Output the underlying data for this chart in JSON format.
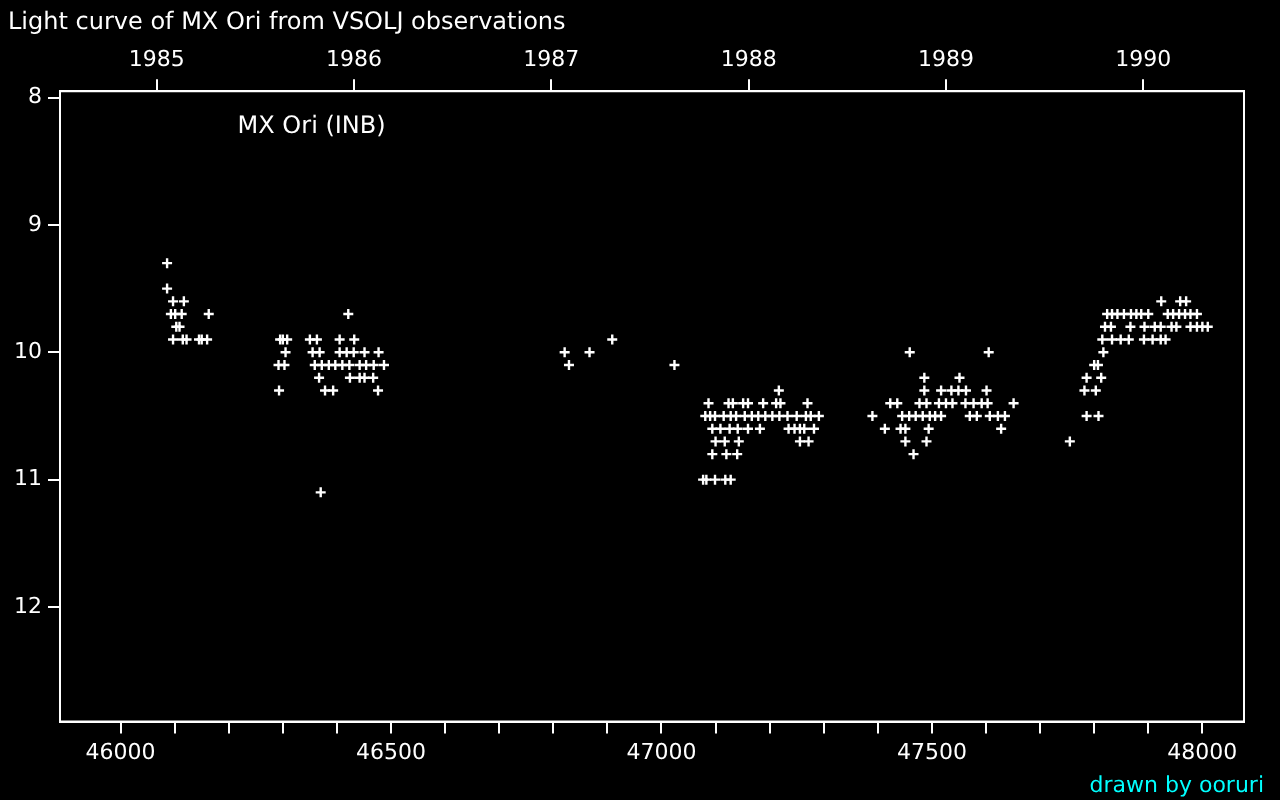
{
  "chart_data": {
    "type": "scatter",
    "title": "Light curve of MX Ori from VSOLJ observations",
    "annotations": [
      "MX Ori (INB)",
      "drawn by ooruri"
    ],
    "xlim": [
      45888,
      48077
    ],
    "xticks": [
      46000,
      {
        "value": 46100,
        "label": null
      },
      {
        "value": 46200,
        "label": null
      },
      {
        "value": 46300,
        "label": null
      },
      {
        "value": 46400,
        "label": null
      },
      46500,
      {
        "value": 46600,
        "label": null
      },
      {
        "value": 46700,
        "label": null
      },
      {
        "value": 46800,
        "label": null
      },
      {
        "value": 46900,
        "label": null
      },
      47000,
      {
        "value": 47100,
        "label": null
      },
      {
        "value": 47200,
        "label": null
      },
      {
        "value": 47300,
        "label": null
      },
      {
        "value": 47400,
        "label": null
      },
      47500,
      {
        "value": 47600,
        "label": null
      },
      {
        "value": 47700,
        "label": null
      },
      {
        "value": 47800,
        "label": null
      },
      {
        "value": 47900,
        "label": null
      },
      48000
    ],
    "x2lim": [
      1984.51,
      1990.51
    ],
    "x2ticks": [
      1985,
      1986,
      1987,
      1988,
      1989,
      1990
    ],
    "ylim": [
      12.9,
      7.95
    ],
    "yticks": [
      8,
      9,
      10,
      11,
      12
    ],
    "grid": false,
    "legend": false,
    "marker": "cross",
    "series": [
      {
        "color": "#ffffff",
        "x": [
          46086,
          46086,
          46097,
          46117,
          46093,
          46101,
          46113,
          46163,
          46103,
          46109,
          46097,
          46115,
          46122,
          46145,
          46150,
          46160,
          46421,
          46295,
          46300,
          46308,
          46350,
          46363,
          46405,
          46432,
          46305,
          46355,
          46368,
          46405,
          46418,
          46431,
          46451,
          46477,
          46292,
          46303,
          46359,
          46372,
          46385,
          46397,
          46410,
          46423,
          46442,
          46454,
          46468,
          46487,
          46367,
          46424,
          46442,
          46451,
          46467,
          46293,
          46378,
          46393,
          46476,
          46370,
          46821,
          46829,
          46867,
          46909,
          47024,
          47217,
          47087,
          47124,
          47132,
          47151,
          47160,
          47188,
          47212,
          47220,
          47270,
          47081,
          47090,
          47099,
          47115,
          47128,
          47138,
          47154,
          47167,
          47179,
          47192,
          47205,
          47218,
          47233,
          47250,
          47267,
          47276,
          47291,
          47094,
          47109,
          47126,
          47141,
          47160,
          47182,
          47235,
          47246,
          47256,
          47264,
          47282,
          47100,
          47117,
          47143,
          47256,
          47272,
          47094,
          47120,
          47140,
          47077,
          47083,
          47099,
          47118,
          47128,
          47459,
          47605,
          47486,
          47551,
          47486,
          47517,
          47536,
          47549,
          47563,
          47601,
          47423,
          47436,
          47477,
          47490,
          47513,
          47526,
          47538,
          47562,
          47577,
          47592,
          47603,
          47651,
          47390,
          47445,
          47458,
          47470,
          47483,
          47496,
          47506,
          47517,
          47570,
          47583,
          47607,
          47622,
          47635,
          47413,
          47442,
          47451,
          47494,
          47628,
          47451,
          47490,
          47466,
          47924,
          47959,
          47970,
          47824,
          47833,
          47843,
          47855,
          47868,
          47878,
          47887,
          47900,
          47936,
          47946,
          47957,
          47968,
          47978,
          47990,
          47820,
          47831,
          47867,
          47893,
          47912,
          47923,
          47943,
          47952,
          47978,
          47990,
          48000,
          48010,
          47815,
          47833,
          47849,
          47864,
          47892,
          47908,
          47923,
          47932,
          47817,
          47800,
          47807,
          47786,
          47813,
          47782,
          47803,
          47786,
          47808,
          47755
        ],
        "values": [
          9.3,
          9.5,
          9.6,
          9.6,
          9.7,
          9.7,
          9.7,
          9.7,
          9.8,
          9.8,
          9.9,
          9.9,
          9.9,
          9.9,
          9.9,
          9.9,
          9.7,
          9.9,
          9.9,
          9.9,
          9.9,
          9.9,
          9.9,
          9.9,
          10.0,
          10.0,
          10.0,
          10.0,
          10.0,
          10.0,
          10.0,
          10.0,
          10.1,
          10.1,
          10.1,
          10.1,
          10.1,
          10.1,
          10.1,
          10.1,
          10.1,
          10.1,
          10.1,
          10.1,
          10.2,
          10.2,
          10.2,
          10.2,
          10.2,
          10.3,
          10.3,
          10.3,
          10.3,
          11.1,
          10.0,
          10.1,
          10.0,
          9.9,
          10.1,
          10.3,
          10.4,
          10.4,
          10.4,
          10.4,
          10.4,
          10.4,
          10.4,
          10.4,
          10.4,
          10.5,
          10.5,
          10.5,
          10.5,
          10.5,
          10.5,
          10.5,
          10.5,
          10.5,
          10.5,
          10.5,
          10.5,
          10.5,
          10.5,
          10.5,
          10.5,
          10.5,
          10.6,
          10.6,
          10.6,
          10.6,
          10.6,
          10.6,
          10.6,
          10.6,
          10.6,
          10.6,
          10.6,
          10.7,
          10.7,
          10.7,
          10.7,
          10.7,
          10.8,
          10.8,
          10.8,
          11.0,
          11.0,
          11.0,
          11.0,
          11.0,
          10.0,
          10.0,
          10.2,
          10.2,
          10.3,
          10.3,
          10.3,
          10.3,
          10.3,
          10.3,
          10.4,
          10.4,
          10.4,
          10.4,
          10.4,
          10.4,
          10.4,
          10.4,
          10.4,
          10.4,
          10.4,
          10.4,
          10.5,
          10.5,
          10.5,
          10.5,
          10.5,
          10.5,
          10.5,
          10.5,
          10.5,
          10.5,
          10.5,
          10.5,
          10.5,
          10.6,
          10.6,
          10.6,
          10.6,
          10.6,
          10.7,
          10.7,
          10.8,
          9.6,
          9.6,
          9.6,
          9.7,
          9.7,
          9.7,
          9.7,
          9.7,
          9.7,
          9.7,
          9.7,
          9.7,
          9.7,
          9.7,
          9.7,
          9.7,
          9.7,
          9.8,
          9.8,
          9.8,
          9.8,
          9.8,
          9.8,
          9.8,
          9.8,
          9.8,
          9.8,
          9.8,
          9.8,
          9.9,
          9.9,
          9.9,
          9.9,
          9.9,
          9.9,
          9.9,
          9.9,
          10.0,
          10.1,
          10.1,
          10.2,
          10.2,
          10.3,
          10.3,
          10.5,
          10.5,
          10.7
        ]
      }
    ]
  }
}
